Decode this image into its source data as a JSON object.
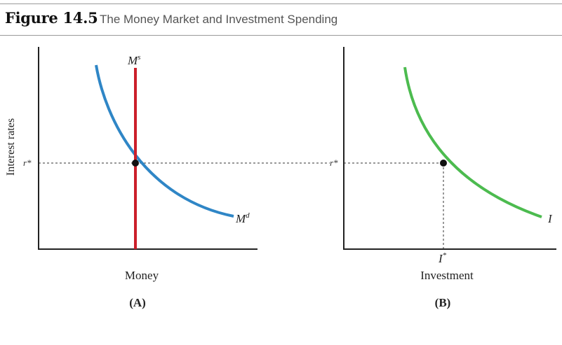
{
  "header": {
    "figure_label": "Figure 14.5",
    "title": "The Money Market and Investment Spending"
  },
  "y_axis_label": "Interest rates",
  "panel_a": {
    "panel_label": "(A)",
    "x_axis_label": "Money",
    "r_star_label": "r*",
    "supply_label_main": "M",
    "supply_label_sup": "s",
    "demand_label_main": "M",
    "demand_label_sup": "d"
  },
  "panel_b": {
    "panel_label": "(B)",
    "x_axis_label": "Investment",
    "r_star_label": "r*",
    "curve_label": "I",
    "i_star_main": "I",
    "i_star_sup": "*"
  },
  "colors": {
    "money_supply": "#cc1f2a",
    "money_demand": "#2f86c6",
    "investment": "#4cbb4f",
    "axis": "#222222",
    "guide": "#333333"
  }
}
